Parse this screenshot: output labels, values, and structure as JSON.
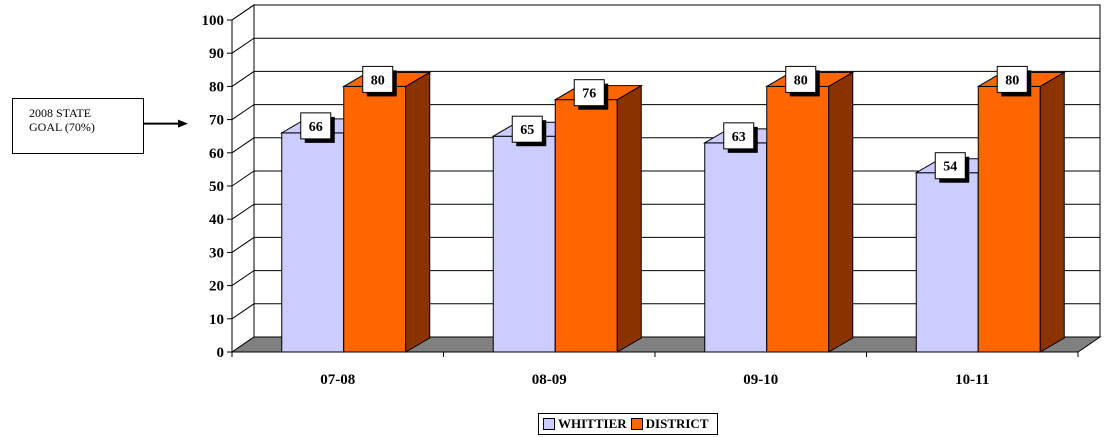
{
  "chart_data": {
    "type": "bar",
    "categories": [
      "07-08",
      "08-09",
      "09-10",
      "10-11"
    ],
    "series": [
      {
        "name": "WHITTIER",
        "values": [
          66,
          65,
          63,
          54
        ],
        "color": "#CCCCFF",
        "dark": "#9999CC"
      },
      {
        "name": "DISTRICT",
        "values": [
          80,
          76,
          80,
          80
        ],
        "color": "#FF6600",
        "dark": "#8B3300"
      }
    ],
    "ylim": [
      0,
      100
    ],
    "yticks": [
      0,
      10,
      20,
      30,
      40,
      50,
      60,
      70,
      80,
      90,
      100
    ],
    "grid": true,
    "legend": "bottom-center",
    "three_d": true,
    "floor_color": "#808080"
  },
  "annotation": {
    "line1": "2008 STATE",
    "line2": "GOAL (70%)",
    "points_to": 70
  }
}
